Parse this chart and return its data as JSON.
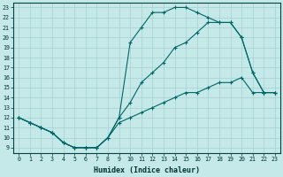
{
  "xlabel": "Humidex (Indice chaleur)",
  "background_color": "#c5e8e8",
  "grid_color": "#a8d0d0",
  "line_color": "#006666",
  "xlim": [
    -0.5,
    23.5
  ],
  "ylim": [
    8.5,
    23.5
  ],
  "xticks": [
    0,
    1,
    2,
    3,
    4,
    5,
    6,
    7,
    8,
    9,
    10,
    11,
    12,
    13,
    14,
    15,
    16,
    17,
    18,
    19,
    20,
    21,
    22,
    23
  ],
  "yticks": [
    9,
    10,
    11,
    12,
    13,
    14,
    15,
    16,
    17,
    18,
    19,
    20,
    21,
    22,
    23
  ],
  "line1_x": [
    0,
    1,
    2,
    3,
    4,
    5,
    6,
    7,
    8,
    9,
    10,
    11,
    12,
    13,
    14,
    15,
    16,
    17,
    18,
    19,
    20,
    21,
    22,
    23
  ],
  "line1_y": [
    12.0,
    11.5,
    11.0,
    10.5,
    9.5,
    9.0,
    9.0,
    9.0,
    10.0,
    11.5,
    12.0,
    12.5,
    13.0,
    13.5,
    14.0,
    14.5,
    14.5,
    15.0,
    15.5,
    15.5,
    16.0,
    14.5,
    14.5,
    14.5
  ],
  "line2_x": [
    0,
    1,
    2,
    3,
    4,
    5,
    6,
    7,
    8,
    9,
    10,
    11,
    12,
    13,
    14,
    15,
    16,
    17,
    18,
    19,
    20,
    21,
    22,
    23
  ],
  "line2_y": [
    12.0,
    11.5,
    11.0,
    10.5,
    9.5,
    9.0,
    9.0,
    9.0,
    10.0,
    12.0,
    13.5,
    15.5,
    16.5,
    17.5,
    19.0,
    19.5,
    20.5,
    21.5,
    21.5,
    21.5,
    20.0,
    16.5,
    14.5,
    14.5
  ],
  "line3_x": [
    0,
    1,
    2,
    3,
    4,
    5,
    6,
    7,
    8,
    9,
    10,
    11,
    12,
    13,
    14,
    15,
    16,
    17,
    18,
    19,
    20,
    21,
    22,
    23
  ],
  "line3_y": [
    12.0,
    11.5,
    11.0,
    10.5,
    9.5,
    9.0,
    9.0,
    9.0,
    10.0,
    12.0,
    19.5,
    21.0,
    22.5,
    22.5,
    23.0,
    23.0,
    22.5,
    22.0,
    21.5,
    21.5,
    20.0,
    16.5,
    14.5,
    14.5
  ]
}
